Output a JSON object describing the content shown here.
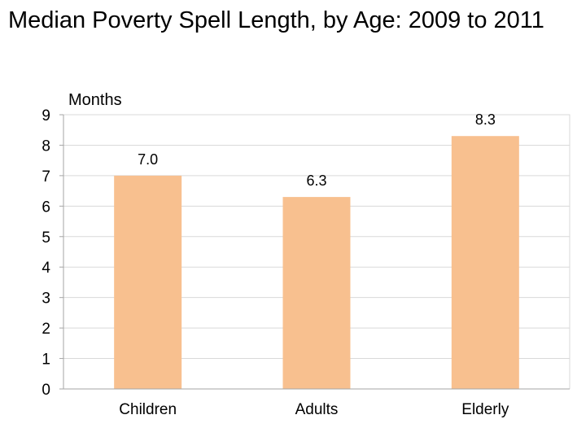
{
  "chart_data": {
    "type": "bar",
    "title": "Median Poverty Spell Length, by Age: 2009 to 2011",
    "ylabel": "Months",
    "xlabel": "",
    "categories": [
      "Children",
      "Adults",
      "Elderly"
    ],
    "values": [
      7.0,
      6.3,
      8.3
    ],
    "data_labels": [
      "7.0",
      "6.3",
      "8.3"
    ],
    "ylim": [
      0,
      9
    ],
    "yticks": [
      "0",
      "1",
      "2",
      "3",
      "4",
      "5",
      "6",
      "7",
      "8",
      "9"
    ],
    "grid": true,
    "bar_color": "#F8C08F",
    "gridline_color": "#D9D9D9",
    "axis_color": "#A6A6A6"
  }
}
